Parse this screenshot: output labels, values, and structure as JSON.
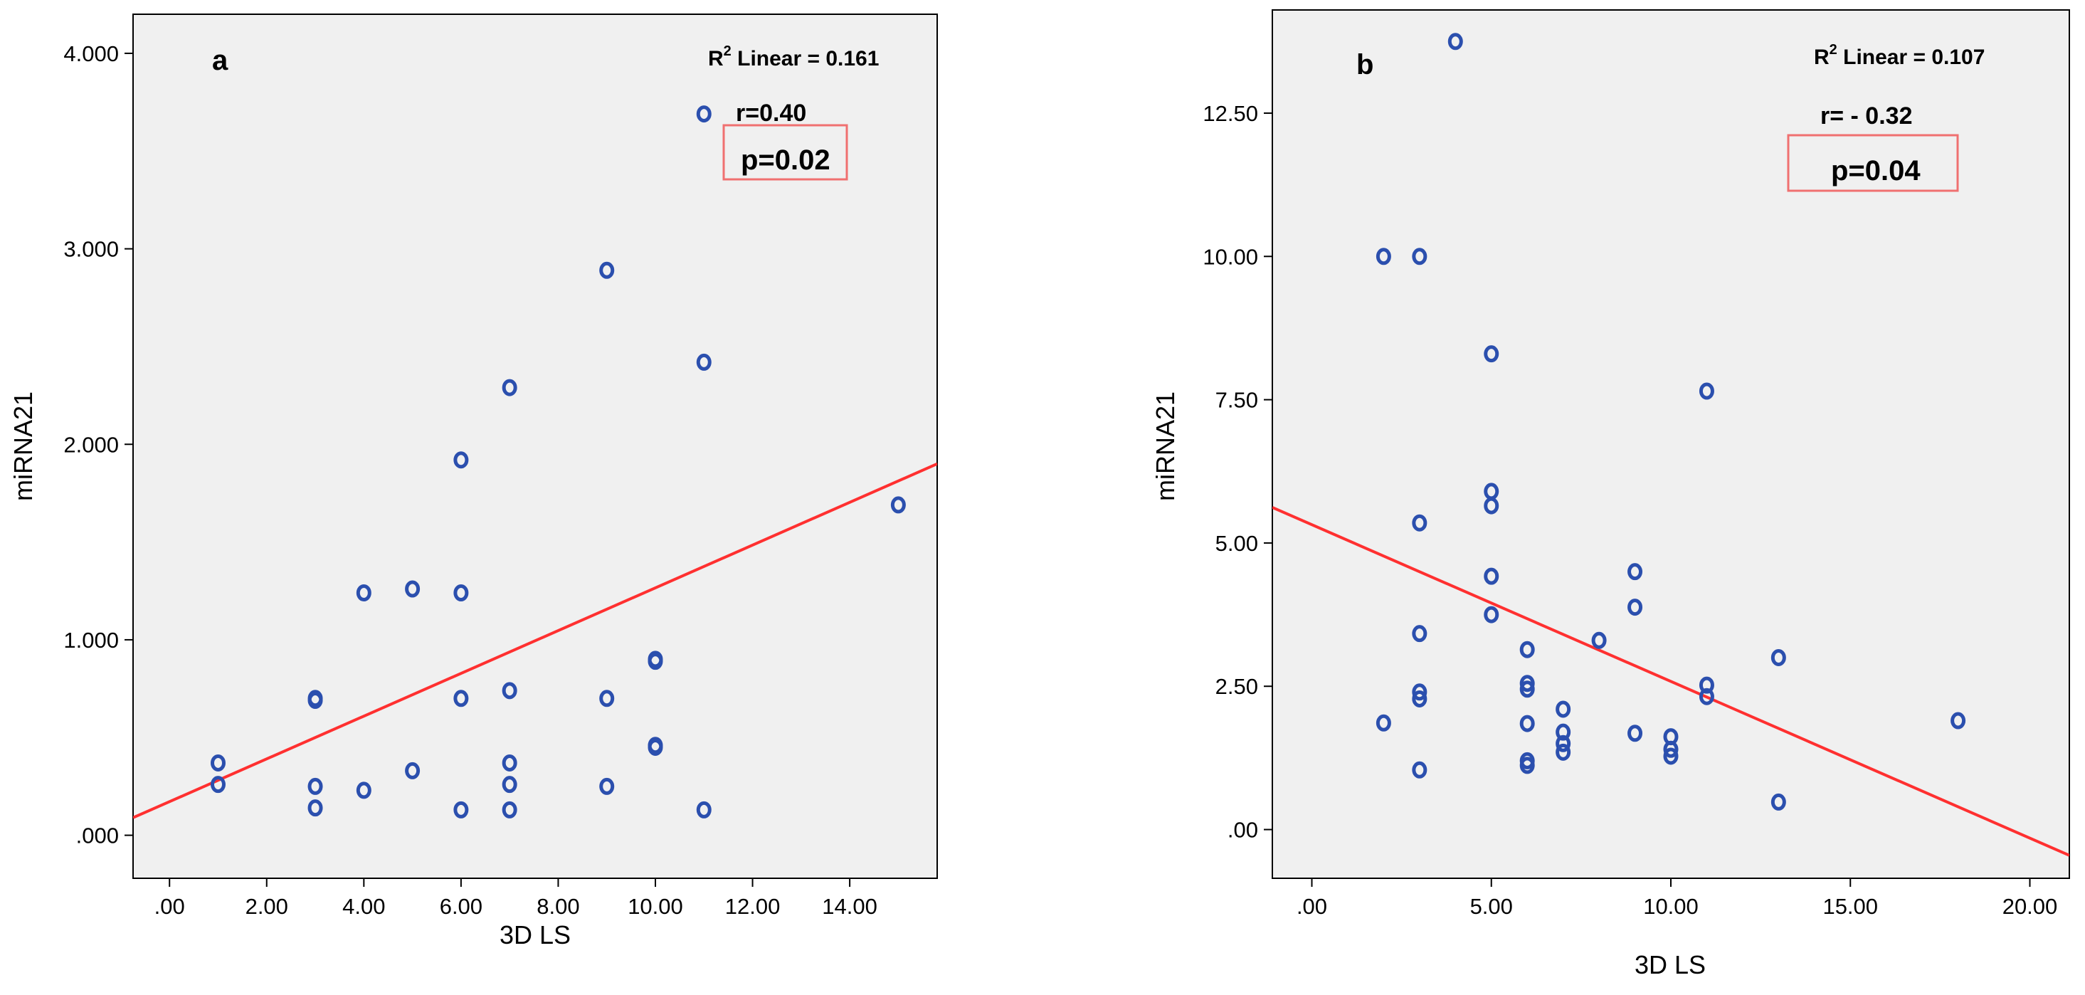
{
  "colors": {
    "plot_background": "#f0f0f0",
    "marker": "#2b4fae",
    "fit_line": "#ff3030",
    "highlight_box": "#f07070"
  },
  "chart_data": [
    {
      "type": "scatter",
      "panel_label": "a",
      "xlabel": "3D LS",
      "ylabel": "miRNA21",
      "xlim": [
        -0.75,
        15.8
      ],
      "ylim": [
        -0.22,
        4.2
      ],
      "x_ticks": [
        0,
        2,
        4,
        6,
        8,
        10,
        12,
        14
      ],
      "x_tick_labels": [
        ".00",
        "2.00",
        "4.00",
        "6.00",
        "8.00",
        "10.00",
        "12.00",
        "14.00"
      ],
      "y_ticks": [
        0,
        1,
        2,
        3,
        4
      ],
      "y_tick_labels": [
        ".000",
        "1.000",
        "2.000",
        "3.000",
        "4.000"
      ],
      "grid": false,
      "points": [
        [
          1,
          0.37
        ],
        [
          1,
          0.26
        ],
        [
          3,
          0.7
        ],
        [
          3,
          0.69
        ],
        [
          3,
          0.25
        ],
        [
          3,
          0.14
        ],
        [
          4,
          1.24
        ],
        [
          4,
          0.23
        ],
        [
          5,
          1.26
        ],
        [
          5,
          0.33
        ],
        [
          6,
          1.92
        ],
        [
          6,
          1.24
        ],
        [
          6,
          0.7
        ],
        [
          6,
          0.13
        ],
        [
          7,
          2.29
        ],
        [
          7,
          0.74
        ],
        [
          7,
          0.37
        ],
        [
          7,
          0.26
        ],
        [
          7,
          0.13
        ],
        [
          9,
          2.89
        ],
        [
          9,
          0.7
        ],
        [
          9,
          0.25
        ],
        [
          10,
          0.9
        ],
        [
          10,
          0.89
        ],
        [
          10,
          0.46
        ],
        [
          10,
          0.45
        ],
        [
          11,
          3.69
        ],
        [
          11,
          2.42
        ],
        [
          11,
          0.13
        ],
        [
          15,
          1.69
        ]
      ],
      "fit_line": {
        "x": [
          -0.75,
          15.8
        ],
        "y": [
          0.09,
          1.9
        ]
      },
      "r2_prefix": "R",
      "r2_sup": "2",
      "r2_rest": " Linear = 0.161",
      "r_text": "r=0.40",
      "p_text": "p=0.02"
    },
    {
      "type": "scatter",
      "panel_label": "b",
      "xlabel": "3D LS",
      "ylabel": "miRNA21",
      "xlim": [
        -1.1,
        21.1
      ],
      "ylim": [
        -0.85,
        14.3
      ],
      "x_ticks": [
        0,
        5,
        10,
        15,
        20
      ],
      "x_tick_labels": [
        ".00",
        "5.00",
        "10.00",
        "15.00",
        "20.00"
      ],
      "y_ticks": [
        0,
        2.5,
        5,
        7.5,
        10,
        12.5
      ],
      "y_tick_labels": [
        ".00",
        "2.50",
        "5.00",
        "7.50",
        "10.00",
        "12.50"
      ],
      "grid": false,
      "points": [
        [
          2,
          10.0
        ],
        [
          2,
          1.86
        ],
        [
          3,
          10.0
        ],
        [
          3,
          5.35
        ],
        [
          3,
          3.42
        ],
        [
          3,
          2.4
        ],
        [
          3,
          2.28
        ],
        [
          3,
          1.04
        ],
        [
          4,
          13.75
        ],
        [
          5,
          8.3
        ],
        [
          5,
          5.9
        ],
        [
          5,
          5.65
        ],
        [
          5,
          4.42
        ],
        [
          5,
          3.75
        ],
        [
          6,
          3.14
        ],
        [
          6,
          2.55
        ],
        [
          6,
          2.45
        ],
        [
          6,
          1.85
        ],
        [
          6,
          1.2
        ],
        [
          6,
          1.12
        ],
        [
          7,
          2.1
        ],
        [
          7,
          1.7
        ],
        [
          7,
          1.5
        ],
        [
          7,
          1.35
        ],
        [
          8,
          3.3
        ],
        [
          9,
          4.5
        ],
        [
          9,
          3.88
        ],
        [
          9,
          1.68
        ],
        [
          10,
          1.62
        ],
        [
          10,
          1.4
        ],
        [
          10,
          1.28
        ],
        [
          11,
          7.65
        ],
        [
          11,
          2.52
        ],
        [
          11,
          2.32
        ],
        [
          13,
          3.0
        ],
        [
          13,
          0.48
        ],
        [
          18,
          1.9
        ]
      ],
      "fit_line": {
        "x": [
          -1.1,
          21.1
        ],
        "y": [
          5.62,
          -0.45
        ]
      },
      "r2_prefix": "R",
      "r2_sup": "2",
      "r2_rest": " Linear = 0.107",
      "r_text": "r= - 0.32",
      "p_text": "p=0.04"
    }
  ]
}
